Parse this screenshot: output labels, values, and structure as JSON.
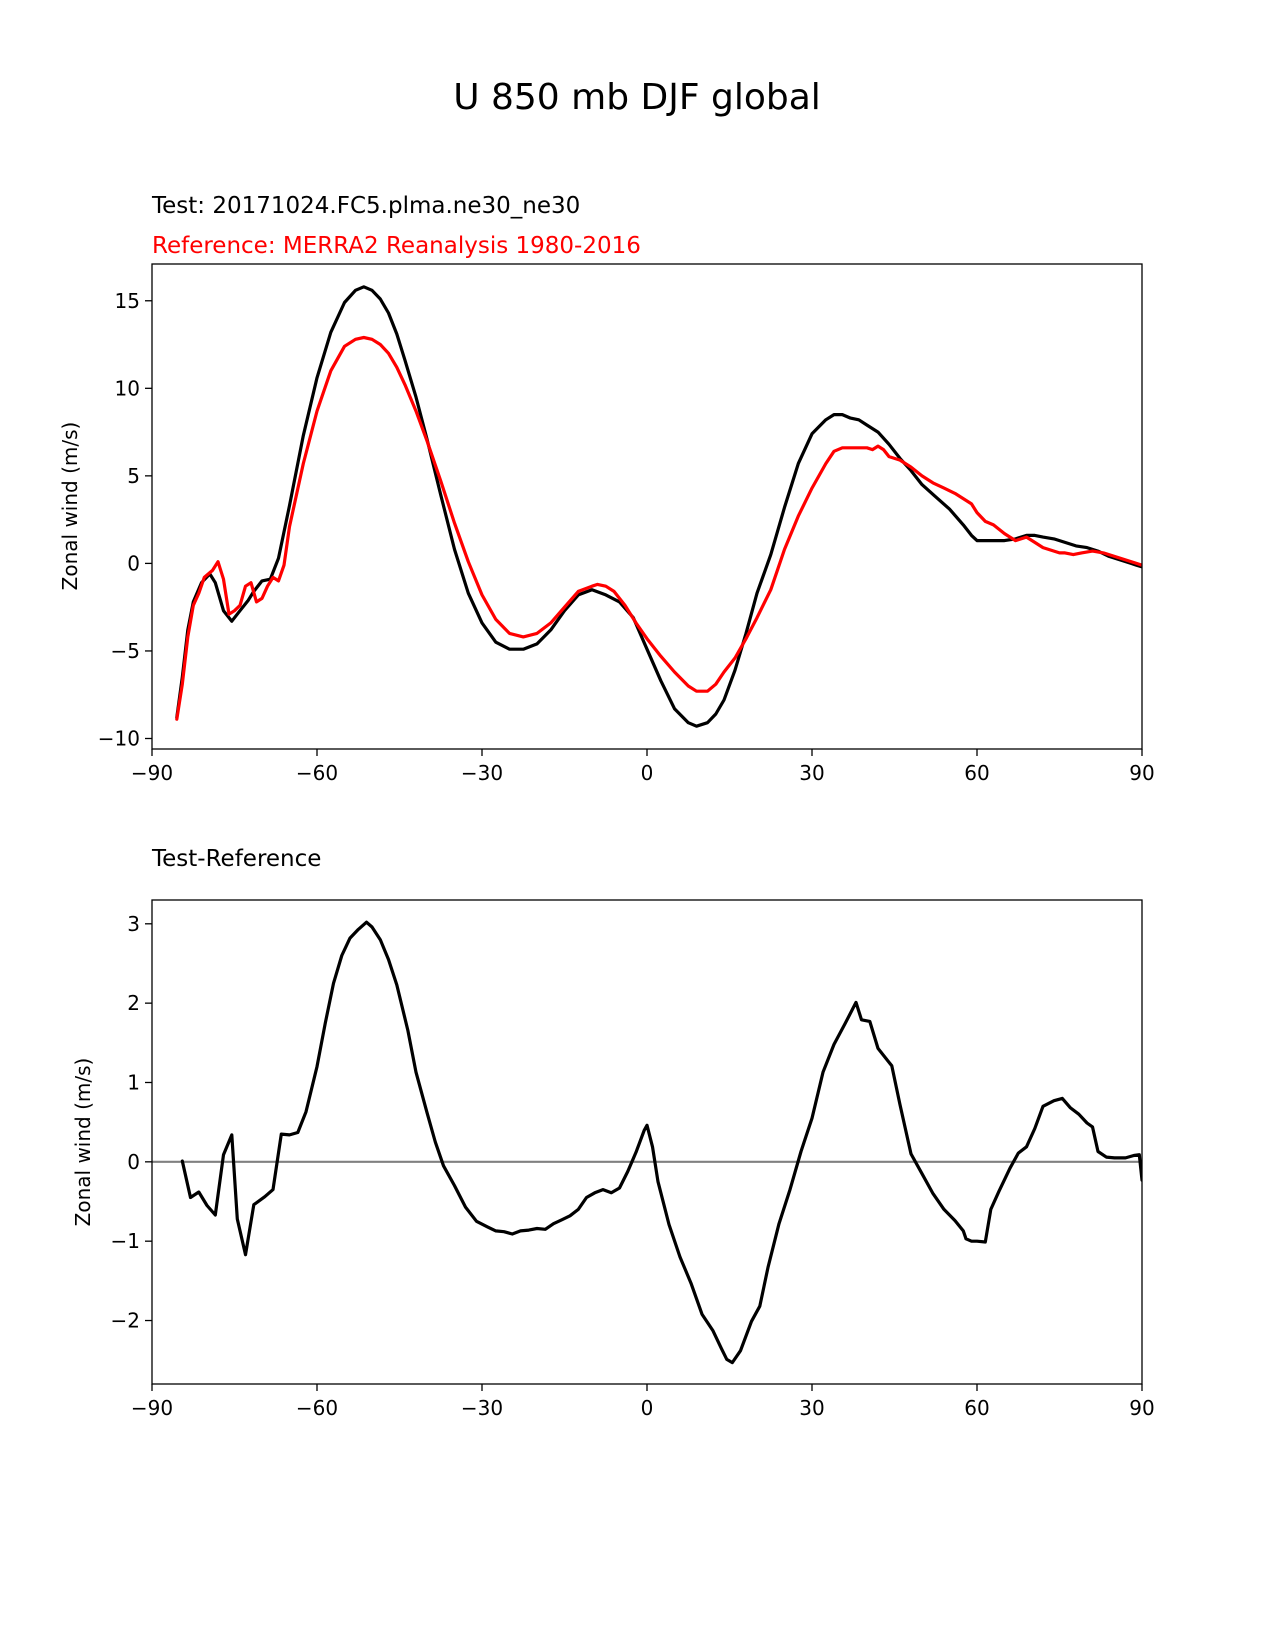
{
  "figure_title": "U 850 mb DJF global",
  "colors": {
    "test": "#000000",
    "reference": "#ff0000",
    "zero_line": "#808080",
    "axis": "#000000"
  },
  "chart_data": [
    {
      "type": "line",
      "title_test": "Test: 20171024.FC5.plma.ne30_ne30",
      "title_reference": "Reference: MERRA2 Reanalysis 1980-2016",
      "xlabel": "",
      "ylabel": "Zonal wind (m/s)",
      "xlim": [
        -90,
        90
      ],
      "ylim": [
        -10.6,
        17.1
      ],
      "xticks": [
        -90,
        -60,
        -30,
        0,
        30,
        60,
        90
      ],
      "xtick_labels": [
        "−90",
        "−60",
        "−30",
        "0",
        "30",
        "60",
        "90"
      ],
      "yticks": [
        -10,
        -5,
        0,
        5,
        10,
        15
      ],
      "ytick_labels": [
        "−10",
        "−5",
        "0",
        "5",
        "10",
        "15"
      ],
      "series": [
        {
          "name": "Test",
          "color": "#000000",
          "x": [
            -85.5,
            -84.5,
            -83.5,
            -82.5,
            -81,
            -79.5,
            -78.5,
            -77,
            -75.5,
            -74,
            -72.5,
            -71.5,
            -70,
            -68.5,
            -67,
            -65,
            -62.5,
            -60,
            -57.5,
            -55,
            -53,
            -51.5,
            -50,
            -48.5,
            -47,
            -45.5,
            -44,
            -42,
            -40,
            -37.5,
            -35,
            -32.5,
            -30,
            -27.5,
            -25,
            -22.5,
            -20,
            -17.5,
            -15,
            -12.5,
            -10,
            -7.5,
            -5,
            -2.5,
            0,
            2.5,
            5,
            7.5,
            9,
            11,
            12.5,
            14,
            16,
            18,
            20,
            22.5,
            25,
            27.5,
            30,
            32.5,
            34,
            35.5,
            37,
            38.5,
            40,
            42,
            44,
            46,
            48,
            50,
            52.5,
            55,
            57.5,
            59,
            60,
            61.5,
            63,
            65,
            67,
            69,
            70.5,
            72,
            74,
            76,
            78,
            80,
            82,
            84,
            86,
            88,
            89,
            90
          ],
          "y": [
            -8.8,
            -6.5,
            -3.8,
            -2.2,
            -1.1,
            -0.6,
            -1.1,
            -2.7,
            -3.3,
            -2.7,
            -2.1,
            -1.6,
            -1.0,
            -0.9,
            0.3,
            3.3,
            7.3,
            10.6,
            13.2,
            14.9,
            15.6,
            15.8,
            15.6,
            15.1,
            14.3,
            13.1,
            11.6,
            9.5,
            7.1,
            3.9,
            0.8,
            -1.7,
            -3.4,
            -4.5,
            -4.9,
            -4.9,
            -4.6,
            -3.8,
            -2.7,
            -1.8,
            -1.5,
            -1.8,
            -2.2,
            -3.1,
            -4.9,
            -6.7,
            -8.3,
            -9.1,
            -9.3,
            -9.1,
            -8.6,
            -7.8,
            -6.1,
            -4.0,
            -1.7,
            0.5,
            3.2,
            5.7,
            7.4,
            8.2,
            8.5,
            8.5,
            8.3,
            8.2,
            7.9,
            7.5,
            6.8,
            6.0,
            5.3,
            4.5,
            3.8,
            3.1,
            2.2,
            1.6,
            1.3,
            1.3,
            1.3,
            1.3,
            1.4,
            1.6,
            1.6,
            1.5,
            1.4,
            1.2,
            1.0,
            0.9,
            0.7,
            0.4,
            0.2,
            0.0,
            -0.1,
            -0.2
          ]
        },
        {
          "name": "Reference",
          "color": "#ff0000",
          "x": [
            -85.5,
            -84.5,
            -83.5,
            -82.5,
            -81.5,
            -80.5,
            -79,
            -78,
            -77,
            -76,
            -75,
            -74,
            -73,
            -72,
            -71,
            -70,
            -69,
            -68,
            -67,
            -66,
            -65,
            -62.5,
            -60,
            -57.5,
            -55,
            -53,
            -51.5,
            -50,
            -48.5,
            -47,
            -45.5,
            -44,
            -42,
            -40,
            -37.5,
            -35,
            -32.5,
            -30,
            -27.5,
            -25,
            -22.5,
            -20,
            -17.5,
            -15,
            -12.5,
            -10,
            -9,
            -7.5,
            -6,
            -4,
            -2,
            0,
            2.5,
            5,
            7.5,
            9,
            10,
            11,
            12.5,
            14,
            16,
            18,
            20,
            22.5,
            25,
            27.5,
            30,
            32.5,
            34,
            35.5,
            37,
            38.5,
            40,
            41,
            42,
            43,
            44,
            46,
            48,
            50,
            52,
            54,
            56,
            58,
            59,
            60,
            61.5,
            63,
            65,
            67,
            69,
            70.5,
            72,
            74,
            75,
            76,
            77.5,
            79,
            81,
            83,
            85,
            87,
            89,
            90
          ],
          "y": [
            -8.9,
            -6.9,
            -4.2,
            -2.4,
            -1.7,
            -0.8,
            -0.4,
            0.1,
            -0.9,
            -2.9,
            -2.7,
            -2.4,
            -1.3,
            -1.1,
            -2.2,
            -2.0,
            -1.3,
            -0.8,
            -1.0,
            -0.1,
            2.1,
            5.7,
            8.7,
            11.0,
            12.4,
            12.8,
            12.9,
            12.8,
            12.5,
            12.0,
            11.2,
            10.2,
            8.7,
            7.0,
            4.7,
            2.3,
            0.1,
            -1.8,
            -3.2,
            -4.0,
            -4.2,
            -4.0,
            -3.4,
            -2.5,
            -1.6,
            -1.3,
            -1.2,
            -1.3,
            -1.6,
            -2.4,
            -3.4,
            -4.3,
            -5.3,
            -6.2,
            -7.0,
            -7.3,
            -7.3,
            -7.3,
            -6.9,
            -6.2,
            -5.4,
            -4.3,
            -3.1,
            -1.5,
            0.8,
            2.7,
            4.3,
            5.7,
            6.4,
            6.6,
            6.6,
            6.6,
            6.6,
            6.5,
            6.7,
            6.5,
            6.1,
            5.9,
            5.5,
            5.0,
            4.6,
            4.3,
            4.0,
            3.6,
            3.4,
            2.9,
            2.4,
            2.2,
            1.7,
            1.3,
            1.5,
            1.2,
            0.9,
            0.7,
            0.6,
            0.6,
            0.5,
            0.6,
            0.7,
            0.6,
            0.4,
            0.2,
            0.0,
            -0.1
          ]
        }
      ]
    },
    {
      "type": "line",
      "title": "Test-Reference",
      "xlabel": "",
      "ylabel": "Zonal wind (m/s)",
      "xlim": [
        -90,
        90
      ],
      "ylim": [
        -2.8,
        3.3
      ],
      "xticks": [
        -90,
        -60,
        -30,
        0,
        30,
        60,
        90
      ],
      "xtick_labels": [
        "−90",
        "−60",
        "−30",
        "0",
        "30",
        "60",
        "90"
      ],
      "yticks": [
        -2,
        -1,
        0,
        1,
        2,
        3
      ],
      "ytick_labels": [
        "−2",
        "−1",
        "0",
        "1",
        "2",
        "3"
      ],
      "zero_line": 0,
      "series": [
        {
          "name": "Test-Reference",
          "color": "#000000",
          "x": [
            -84.5,
            -83,
            -81.5,
            -80,
            -78.5,
            -77,
            -75.5,
            -74.5,
            -73,
            -71.5,
            -69.5,
            -68,
            -66.5,
            -65,
            -63.5,
            -62,
            -60,
            -58.5,
            -57,
            -55.5,
            -54,
            -52.5,
            -51,
            -50,
            -48.5,
            -47,
            -45.5,
            -43.5,
            -42,
            -40,
            -38.5,
            -37,
            -35,
            -33,
            -31,
            -29,
            -27.5,
            -26,
            -24.5,
            -23,
            -21.5,
            -20,
            -18.5,
            -17,
            -15.5,
            -14,
            -12.5,
            -11,
            -9.5,
            -8,
            -6.5,
            -5,
            -3.5,
            -2,
            -0.5,
            0,
            1,
            2,
            4,
            6,
            8,
            10,
            12,
            13.5,
            14.5,
            15.5,
            17,
            19,
            20.5,
            22,
            24,
            26,
            28,
            30,
            32,
            34,
            36,
            38,
            39,
            40.5,
            42,
            44.5,
            46,
            48,
            50,
            52,
            54,
            56,
            57.5,
            58,
            59,
            60,
            61.5,
            62.5,
            64,
            66,
            67.5,
            69,
            70.5,
            72,
            74,
            75.5,
            77,
            78.5,
            80,
            81,
            82,
            83.5,
            85,
            87,
            88.5,
            89.5,
            90
          ],
          "y": [
            0.01,
            -0.45,
            -0.38,
            -0.55,
            -0.67,
            0.09,
            0.34,
            -0.72,
            -1.17,
            -0.54,
            -0.44,
            -0.35,
            0.35,
            0.34,
            0.37,
            0.63,
            1.2,
            1.75,
            2.25,
            2.6,
            2.82,
            2.93,
            3.02,
            2.96,
            2.8,
            2.55,
            2.23,
            1.66,
            1.13,
            0.62,
            0.25,
            -0.05,
            -0.3,
            -0.57,
            -0.75,
            -0.82,
            -0.87,
            -0.88,
            -0.91,
            -0.87,
            -0.86,
            -0.84,
            -0.85,
            -0.78,
            -0.73,
            -0.68,
            -0.6,
            -0.45,
            -0.39,
            -0.35,
            -0.39,
            -0.33,
            -0.12,
            0.12,
            0.4,
            0.46,
            0.19,
            -0.25,
            -0.79,
            -1.2,
            -1.53,
            -1.92,
            -2.13,
            -2.35,
            -2.49,
            -2.53,
            -2.38,
            -2.01,
            -1.82,
            -1.33,
            -0.78,
            -0.35,
            0.13,
            0.55,
            1.13,
            1.48,
            1.74,
            2.01,
            1.79,
            1.77,
            1.43,
            1.21,
            0.72,
            0.1,
            -0.15,
            -0.4,
            -0.6,
            -0.74,
            -0.87,
            -0.97,
            -1.0,
            -1.0,
            -1.01,
            -0.6,
            -0.37,
            -0.08,
            0.11,
            0.19,
            0.42,
            0.7,
            0.77,
            0.8,
            0.68,
            0.6,
            0.49,
            0.44,
            0.13,
            0.06,
            0.05,
            0.05,
            0.08,
            0.09,
            -0.23
          ]
        }
      ]
    }
  ]
}
